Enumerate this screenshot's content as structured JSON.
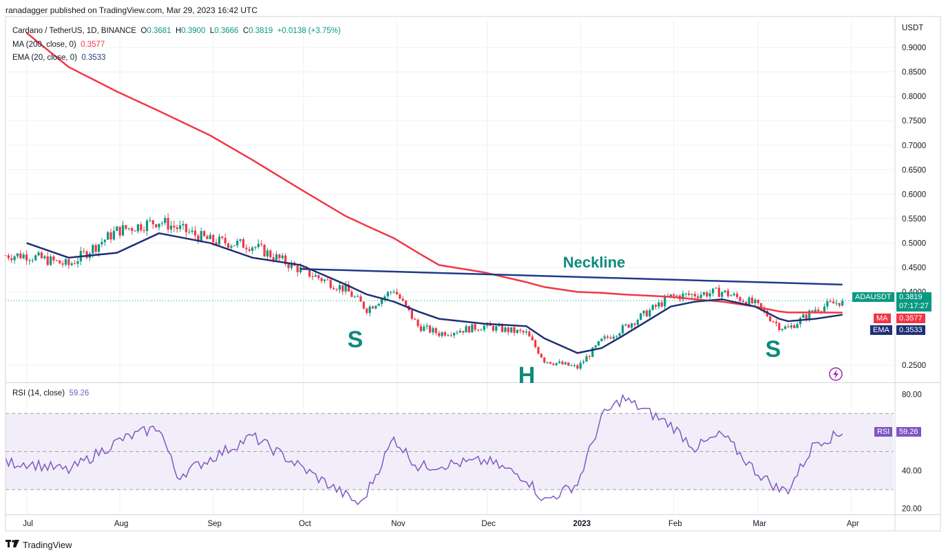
{
  "publisher": "ranadagger published on TradingView.com, Mar 29, 2023 16:42 UTC",
  "legend": {
    "symbol": "Cardano / TetherUS, 1D, BINANCE",
    "o_label": "O",
    "o": "0.3681",
    "h_label": "H",
    "h": "0.3900",
    "l_label": "L",
    "l": "0.3666",
    "c_label": "C",
    "c": "0.3819",
    "change": "+0.0138 (+3.75%)",
    "ma_label": "MA (200, close, 0)",
    "ma_value": "0.3577",
    "ema_label": "EMA (20, close, 0)",
    "ema_value": "0.3533"
  },
  "rsi_legend": {
    "label": "RSI (14, close)",
    "value": "59.26"
  },
  "price_axis": {
    "currency": "USDT",
    "ticks": [
      "0.9000",
      "0.8500",
      "0.8000",
      "0.7500",
      "0.7000",
      "0.6500",
      "0.6000",
      "0.5500",
      "0.5000",
      "0.4500",
      "0.4000",
      "0.2500"
    ]
  },
  "rsi_axis": {
    "ticks": [
      "80.00",
      "40.00",
      "20.00"
    ]
  },
  "time_axis": {
    "ticks": [
      "Jul",
      "Aug",
      "Sep",
      "Oct",
      "Nov",
      "Dec",
      "2023",
      "Feb",
      "Mar",
      "Apr"
    ]
  },
  "tags": {
    "symbol_tag": "ADAUSDT",
    "price": "0.3819",
    "countdown": "07:17:27",
    "ma_tag": "MA",
    "ma": "0.3577",
    "ema_tag": "EMA",
    "ema": "0.3533",
    "rsi_tag": "RSI",
    "rsi": "59.26"
  },
  "annotations": {
    "neckline": "Neckline",
    "left_shoulder": "S",
    "head": "H",
    "right_shoulder": "S"
  },
  "footer": {
    "brand": "TradingView"
  },
  "colors": {
    "up": "#089981",
    "down": "#f23645",
    "ma": "#f23645",
    "ema": "#1e2f74",
    "neckline": "#1e3a8a",
    "annotation": "#0f8a7e",
    "rsi": "#7e57c2",
    "rsi_band": "#ede7f6"
  },
  "chart_data": [
    {
      "type": "candlestick",
      "title": "Cardano / TetherUS, 1D, BINANCE",
      "x_range": [
        "2022-06-24",
        "2023-04-15"
      ],
      "ylim": [
        0.215,
        0.955
      ],
      "ylabel": "USDT",
      "x": [
        "2022-07-01",
        "2022-07-15",
        "2022-07-31",
        "2022-08-14",
        "2022-08-31",
        "2022-09-14",
        "2022-09-30",
        "2022-10-15",
        "2022-10-22",
        "2022-10-31",
        "2022-11-08",
        "2022-11-15",
        "2022-11-30",
        "2022-12-14",
        "2022-12-20",
        "2022-12-31",
        "2023-01-08",
        "2023-01-15",
        "2023-01-31",
        "2023-02-08",
        "2023-02-17",
        "2023-02-28",
        "2023-03-08",
        "2023-03-11",
        "2023-03-20",
        "2023-03-29"
      ],
      "close": [
        0.475,
        0.455,
        0.525,
        0.545,
        0.505,
        0.495,
        0.445,
        0.405,
        0.365,
        0.405,
        0.33,
        0.315,
        0.33,
        0.315,
        0.26,
        0.245,
        0.3,
        0.325,
        0.39,
        0.395,
        0.4,
        0.375,
        0.33,
        0.325,
        0.365,
        0.3819
      ],
      "series": [
        {
          "name": "MA (200, close, 0)",
          "values": [
            0.93,
            0.86,
            0.81,
            0.77,
            0.72,
            0.67,
            0.61,
            0.555,
            0.535,
            0.51,
            0.48,
            0.455,
            0.44,
            0.42,
            0.41,
            0.4,
            0.398,
            0.395,
            0.39,
            0.385,
            0.38,
            0.37,
            0.36,
            0.358,
            0.358,
            0.3577
          ]
        },
        {
          "name": "EMA (20, close, 0)",
          "values": [
            0.5,
            0.47,
            0.48,
            0.52,
            0.5,
            0.47,
            0.455,
            0.415,
            0.395,
            0.38,
            0.36,
            0.345,
            0.335,
            0.33,
            0.305,
            0.275,
            0.285,
            0.31,
            0.37,
            0.38,
            0.385,
            0.37,
            0.345,
            0.34,
            0.345,
            0.3533
          ]
        },
        {
          "name": "Neckline",
          "values": [
            null,
            null,
            null,
            null,
            null,
            null,
            0.447,
            null,
            null,
            null,
            null,
            null,
            null,
            null,
            null,
            null,
            null,
            null,
            null,
            null,
            null,
            null,
            null,
            null,
            null,
            0.415
          ]
        }
      ]
    },
    {
      "type": "line",
      "title": "RSI (14, close)",
      "x_range": [
        "2022-06-24",
        "2023-04-15"
      ],
      "ylim": [
        17,
        86
      ],
      "bands": [
        30,
        50,
        70
      ],
      "x": [
        "2022-07-01",
        "2022-07-15",
        "2022-08-01",
        "2022-08-14",
        "2022-08-20",
        "2022-09-14",
        "2022-09-30",
        "2022-10-20",
        "2022-10-31",
        "2022-11-08",
        "2022-12-01",
        "2022-12-14",
        "2022-12-20",
        "2022-12-31",
        "2023-01-08",
        "2023-01-15",
        "2023-01-31",
        "2023-02-08",
        "2023-02-17",
        "2023-02-28",
        "2023-03-08",
        "2023-03-11",
        "2023-03-20",
        "2023-03-29"
      ],
      "values": [
        44,
        40,
        56,
        63,
        37,
        58,
        42,
        22,
        57,
        42,
        45,
        36,
        24,
        33,
        68,
        78,
        64,
        52,
        59,
        40,
        30,
        30,
        55,
        59.26
      ]
    }
  ]
}
